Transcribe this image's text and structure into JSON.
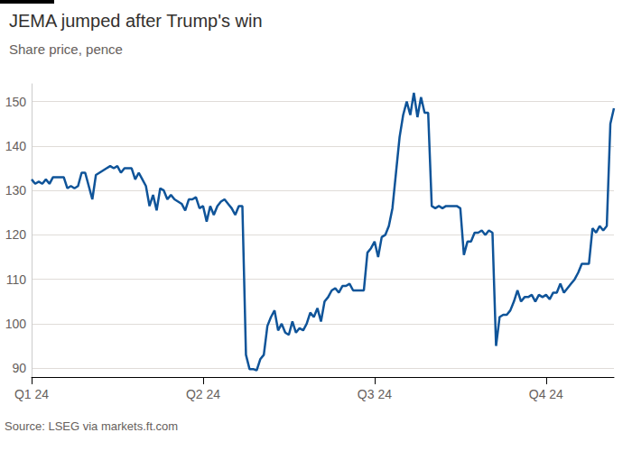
{
  "chart_data": {
    "type": "line",
    "title": "JEMA jumped after Trump's win",
    "subtitle": "Share price, pence",
    "source": "Source: LSEG via markets.ft.com",
    "categories": [
      "Q1 24",
      null,
      null,
      null,
      null,
      null,
      null,
      null,
      null,
      null,
      null,
      null,
      null,
      null,
      null,
      null,
      null,
      null,
      null,
      null,
      null,
      null,
      null,
      null,
      null,
      null,
      null,
      null,
      null,
      null,
      null,
      null,
      null,
      null,
      null,
      null,
      null,
      null,
      null,
      null,
      null,
      null,
      null,
      null,
      null,
      null,
      null,
      null,
      "Q2 24",
      null,
      null,
      null,
      null,
      null,
      null,
      null,
      null,
      null,
      null,
      null,
      null,
      null,
      null,
      null,
      null,
      null,
      null,
      null,
      null,
      null,
      null,
      null,
      null,
      null,
      null,
      null,
      null,
      null,
      null,
      null,
      null,
      null,
      null,
      null,
      null,
      null,
      null,
      null,
      null,
      null,
      null,
      null,
      null,
      null,
      null,
      null,
      "Q3 24",
      null,
      null,
      null,
      null,
      null,
      null,
      null,
      null,
      null,
      null,
      null,
      null,
      null,
      null,
      null,
      null,
      null,
      null,
      null,
      null,
      null,
      null,
      null,
      null,
      null,
      null,
      null,
      null,
      null,
      null,
      null,
      null,
      null,
      null,
      null,
      null,
      null,
      null,
      null,
      null,
      null,
      null,
      null,
      null,
      null,
      null,
      null,
      "Q4 24",
      null,
      null,
      null,
      null,
      null,
      null,
      null,
      null,
      null,
      null,
      null,
      null,
      null,
      null,
      null,
      null,
      null,
      null,
      null
    ],
    "values": [
      132.5,
      131.5,
      132,
      131.5,
      132.5,
      131.5,
      133,
      133,
      133,
      133,
      130.5,
      131,
      130.5,
      131,
      134,
      134,
      131,
      128,
      133.5,
      134,
      134.5,
      135,
      135.5,
      135,
      135.5,
      134,
      135,
      135,
      135,
      132.5,
      134,
      132.5,
      131,
      126.5,
      129,
      125.5,
      130.5,
      130,
      128,
      129,
      128,
      127.5,
      127,
      125.5,
      128,
      128,
      128.5,
      126,
      126.5,
      123,
      126.5,
      124.5,
      126.5,
      127.5,
      128,
      127,
      126,
      124.5,
      126.5,
      126.5,
      93,
      89.8,
      89.8,
      89.5,
      92,
      93,
      99.5,
      101.5,
      103,
      98.5,
      100,
      98,
      97.5,
      100.5,
      98,
      99,
      98.5,
      100,
      102.5,
      101.5,
      103.5,
      100.5,
      105,
      106,
      107.5,
      108,
      107,
      108.5,
      108.5,
      109,
      107.5,
      107.5,
      107.5,
      107.5,
      116,
      117,
      118.5,
      115,
      119.5,
      120,
      122,
      126,
      134,
      142,
      147,
      150,
      147,
      152,
      146.5,
      151,
      147.5,
      147.5,
      126.5,
      126,
      126.5,
      126,
      126.5,
      126.5,
      126.5,
      126.5,
      126,
      115.5,
      118.5,
      118.5,
      120.5,
      120.5,
      121,
      120,
      121,
      120.5,
      95,
      101.5,
      102,
      102,
      103,
      105,
      107.5,
      105,
      106,
      106,
      106.5,
      105,
      106.5,
      106,
      106.5,
      105.5,
      107,
      107,
      109,
      107,
      108,
      109,
      110,
      111.5,
      113.5,
      113.5,
      113.5,
      121.5,
      120.5,
      122,
      121,
      122,
      145,
      148.5
    ],
    "color": "#0f5499",
    "ylim": [
      88,
      154
    ],
    "yticks": [
      90,
      100,
      110,
      120,
      130,
      140,
      150
    ],
    "grid": true
  }
}
